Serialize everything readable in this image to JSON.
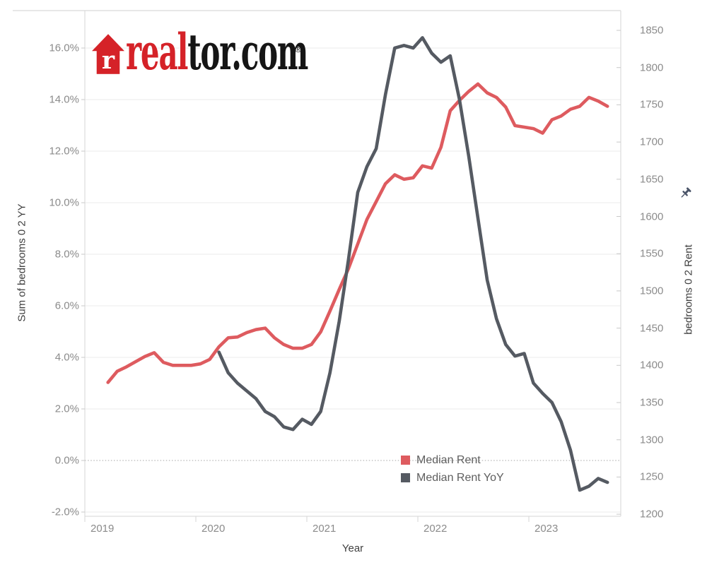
{
  "logo": {
    "brand_prefix": "real",
    "brand_suffix": "tor.com",
    "registered_mark": "®",
    "house_color": "#D52228",
    "house_letter": "r"
  },
  "legend": {
    "items": [
      {
        "label": "Median Rent",
        "color": "#DE5B5F"
      },
      {
        "label": "Median Rent YoY",
        "color": "#555A62"
      }
    ]
  },
  "chart_data": {
    "type": "line",
    "title": "",
    "x_axis": {
      "label": "Year",
      "ticks": [
        {
          "label": "2019",
          "month_index": 0
        },
        {
          "label": "2020",
          "month_index": 12
        },
        {
          "label": "2021",
          "month_index": 24
        },
        {
          "label": "2022",
          "month_index": 36
        },
        {
          "label": "2023",
          "month_index": 48
        }
      ],
      "domain_start": "2019-01",
      "domain_end": "2023-11"
    },
    "left_axis": {
      "label": "Sum of bedrooms 0 2 YY",
      "unit": "percent",
      "min": -2.0,
      "max": 16.0,
      "zero_line_dotted": true,
      "ticks": [
        {
          "value": 16,
          "label": "16.0%"
        },
        {
          "value": 14,
          "label": "14.0%"
        },
        {
          "value": 12,
          "label": "12.0%"
        },
        {
          "value": 10,
          "label": "10.0%"
        },
        {
          "value": 8,
          "label": "8.0%"
        },
        {
          "value": 6,
          "label": "6.0%"
        },
        {
          "value": 4,
          "label": "4.0%"
        },
        {
          "value": 2,
          "label": "2.0%"
        },
        {
          "value": 0,
          "label": "0.0%"
        },
        {
          "value": -2,
          "label": "-2.0%"
        }
      ]
    },
    "right_axis": {
      "label": "bedrooms 0 2 Rent",
      "unit": "dollars",
      "min": 1200,
      "max": 1850,
      "pinned": true,
      "ticks": [
        {
          "value": 1850,
          "label": "1850"
        },
        {
          "value": 1800,
          "label": "1800"
        },
        {
          "value": 1750,
          "label": "1750"
        },
        {
          "value": 1700,
          "label": "1700"
        },
        {
          "value": 1650,
          "label": "1650"
        },
        {
          "value": 1600,
          "label": "1600"
        },
        {
          "value": 1550,
          "label": "1550"
        },
        {
          "value": 1500,
          "label": "1500"
        },
        {
          "value": 1450,
          "label": "1450"
        },
        {
          "value": 1400,
          "label": "1400"
        },
        {
          "value": 1350,
          "label": "1350"
        },
        {
          "value": 1300,
          "label": "1300"
        },
        {
          "value": 1250,
          "label": "1250"
        },
        {
          "value": 1200,
          "label": "1200"
        }
      ]
    },
    "grid": {
      "horizontal": true,
      "vertical": false
    },
    "legend_position": "inside-bottom-right",
    "series": [
      {
        "name": "Median Rent",
        "axis": "right",
        "color": "#DE5B5F",
        "start_month": "2019-03",
        "values": [
          1377,
          1392,
          1398,
          1405,
          1412,
          1417,
          1404,
          1400,
          1400,
          1400,
          1402,
          1408,
          1425,
          1437,
          1438,
          1444,
          1448,
          1450,
          1437,
          1428,
          1423,
          1423,
          1428,
          1445,
          1473,
          1502,
          1530,
          1563,
          1596,
          1620,
          1644,
          1656,
          1650,
          1652,
          1668,
          1665,
          1693,
          1742,
          1756,
          1768,
          1778,
          1766,
          1760,
          1747,
          1722,
          1720,
          1718,
          1712,
          1730,
          1735,
          1744,
          1748,
          1760,
          1755,
          1748
        ]
      },
      {
        "name": "Median Rent YoY",
        "axis": "left",
        "color": "#555A62",
        "start_month": "2020-03",
        "values": [
          4.2,
          3.4,
          3.0,
          2.7,
          2.4,
          1.9,
          1.7,
          1.3,
          1.2,
          1.6,
          1.4,
          1.9,
          3.4,
          5.4,
          7.8,
          10.4,
          11.4,
          12.1,
          14.2,
          16.0,
          16.1,
          16.0,
          16.4,
          15.8,
          15.45,
          15.7,
          14.0,
          11.8,
          9.4,
          7.0,
          5.5,
          4.5,
          4.05,
          4.15,
          3.0,
          2.6,
          2.25,
          1.5,
          0.4,
          -1.15,
          -1.0,
          -0.7,
          -0.85
        ]
      }
    ],
    "colors": {
      "gridline": "#EBEBEB",
      "zero_line": "#C4C4C4",
      "plot_border": "#D6D6D6",
      "top_border": "#CFCFCF",
      "tick_mark": "#C9C9C9",
      "tick_text": "#8B8B8B",
      "axis_title_text": "#3F3F3F",
      "pin_icon": "#4A5468"
    }
  }
}
